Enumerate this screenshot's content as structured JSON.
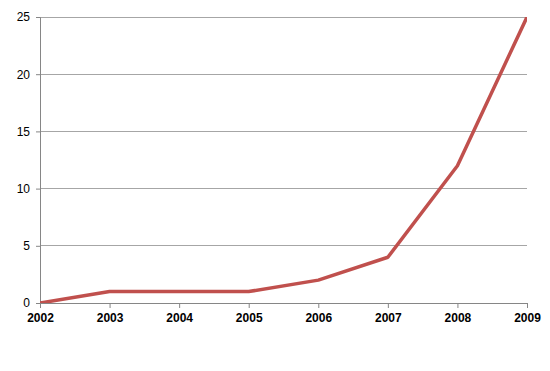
{
  "chart_data": {
    "type": "line",
    "x": [
      2002,
      2003,
      2004,
      2005,
      2006,
      2007,
      2008,
      2009
    ],
    "values": [
      0,
      1,
      1,
      1,
      2,
      4,
      12,
      25
    ],
    "color": "#c0504d",
    "xlim": [
      2002,
      2009
    ],
    "xticks": [
      2002,
      2003,
      2004,
      2005,
      2006,
      2007,
      2008,
      2009
    ],
    "ylim": [
      0,
      25
    ],
    "yticks": [
      0,
      5,
      10,
      15,
      20,
      25
    ],
    "grid": true
  }
}
